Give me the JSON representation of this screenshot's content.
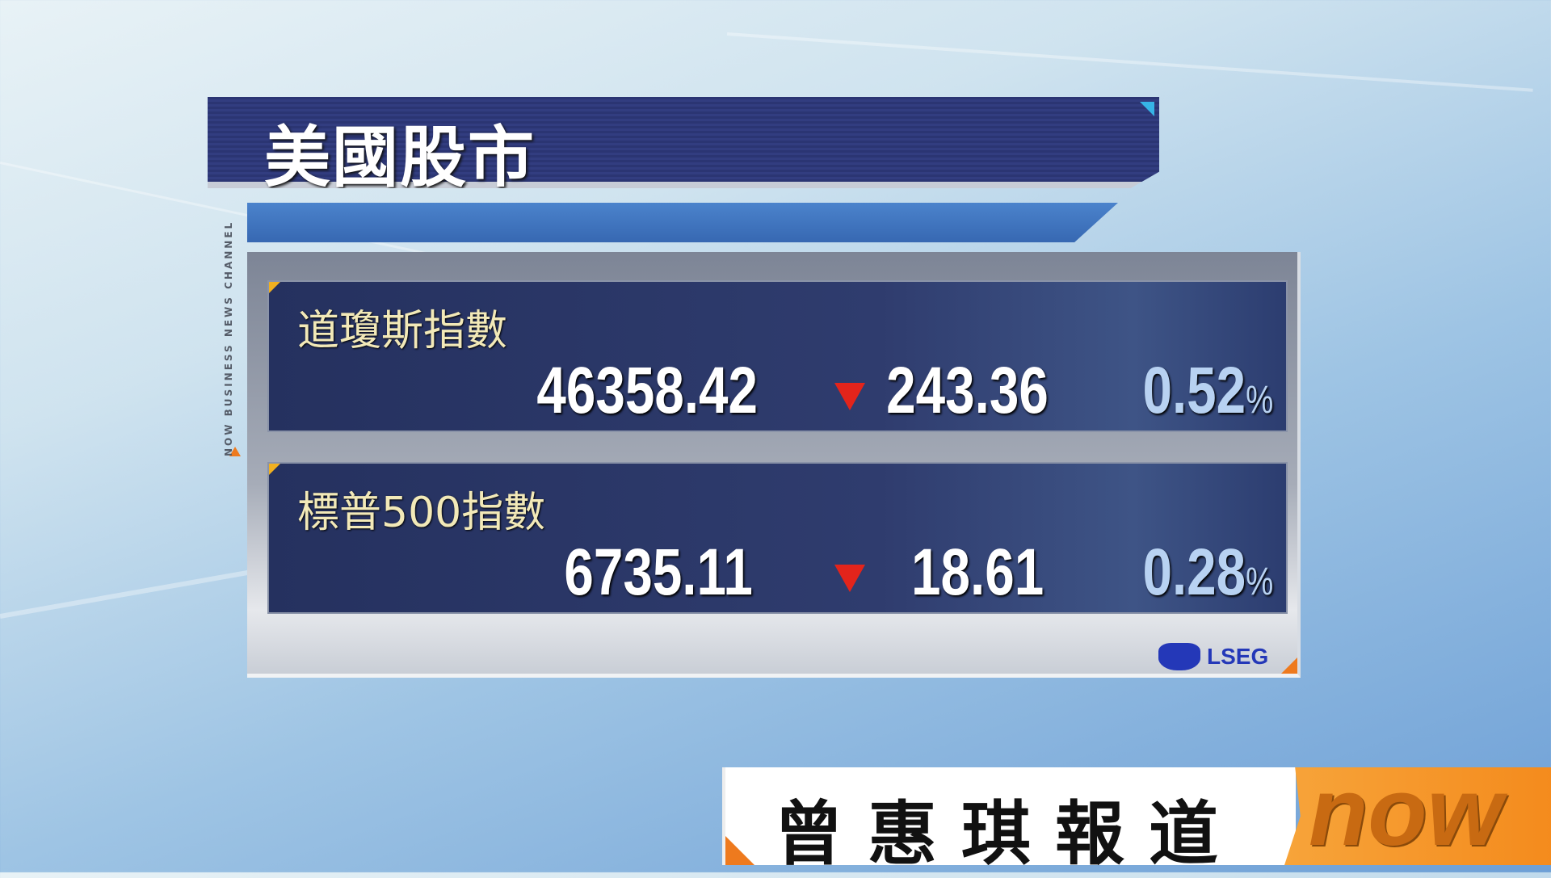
{
  "title": "美國股市",
  "side_channel": "NOW BUSINESS NEWS CHANNEL",
  "rows": [
    {
      "label": "道瓊斯指數",
      "value": "46358.42",
      "direction": "down",
      "change": "243.36",
      "percent": "0.52",
      "percent_sign": "%"
    },
    {
      "label": "標普500指數",
      "value": "6735.11",
      "direction": "down",
      "change": "18.61",
      "percent": "0.28",
      "percent_sign": "%"
    }
  ],
  "source": "LSEG",
  "reporter": "曾惠琪報道",
  "logo": "now",
  "colors": {
    "down_arrow": "#e3241b",
    "accent_orange": "#ee7a1e",
    "title_bar": "#2b3573"
  }
}
